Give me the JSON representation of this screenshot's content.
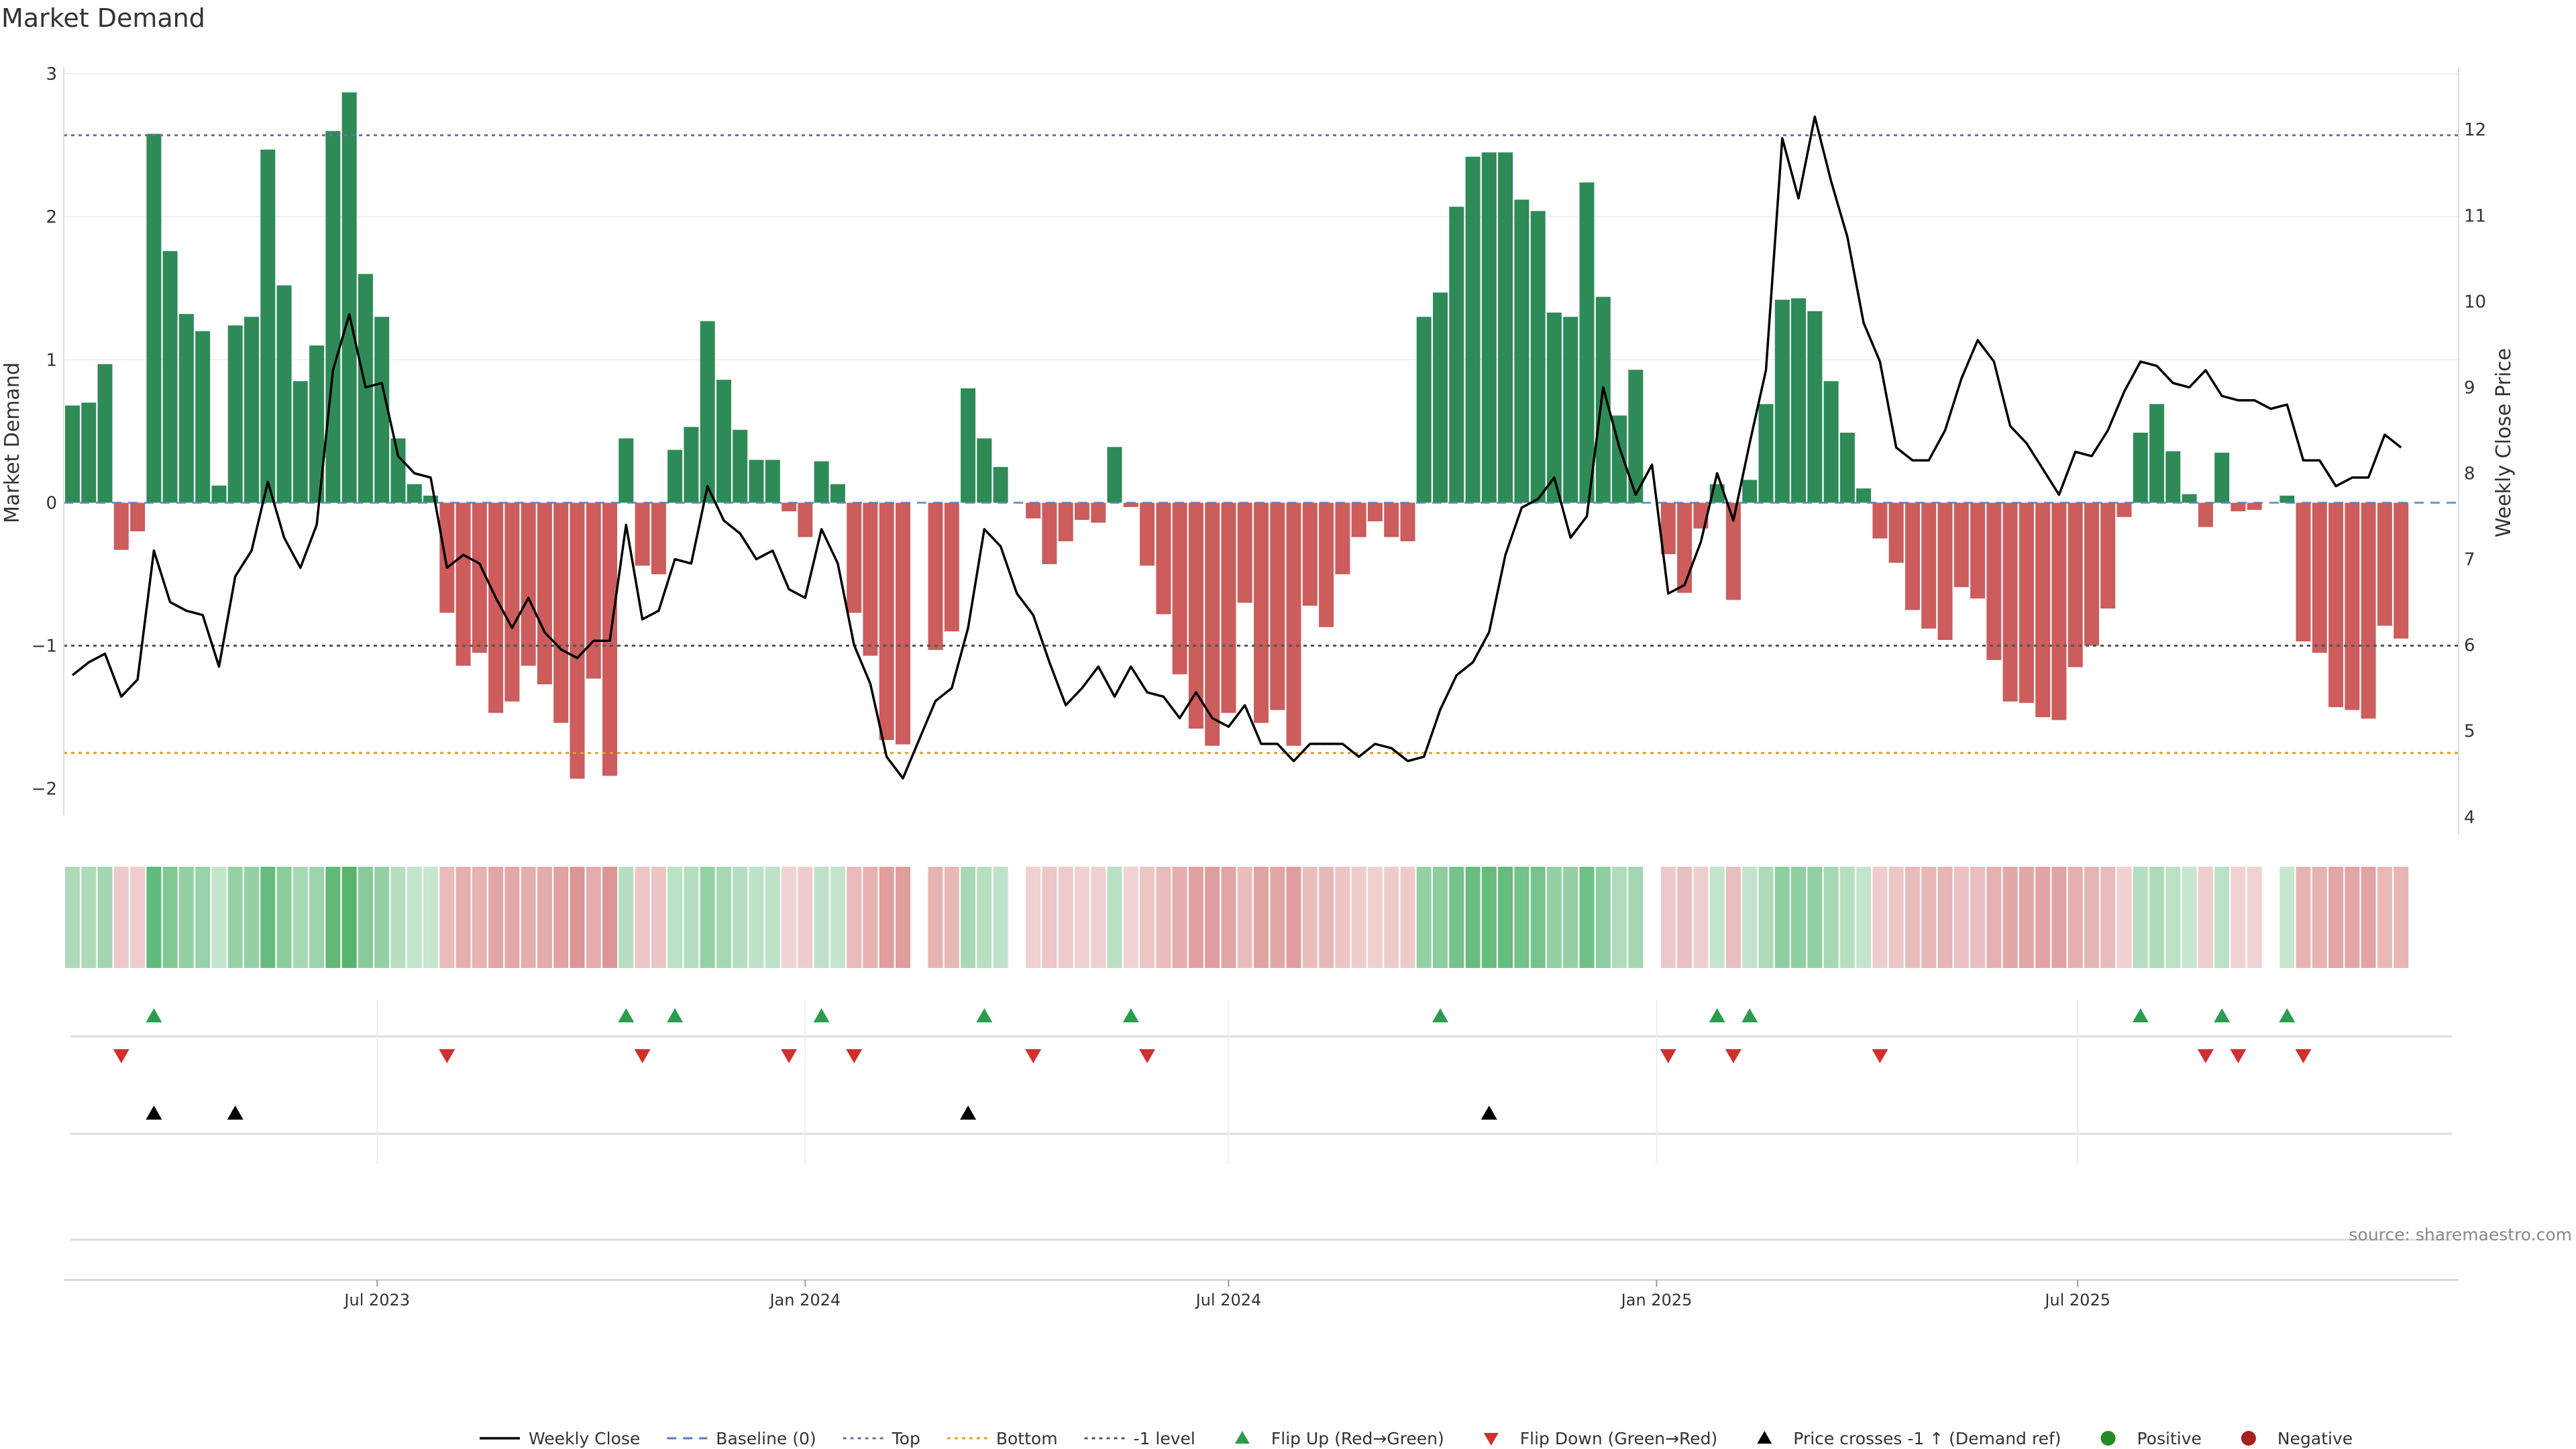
{
  "chart_data": {
    "type": "bar",
    "title": "Market Demand",
    "ylabel": "Market Demand",
    "y2label": "Weekly Close Price",
    "ylim": [
      -2.1,
      3.0
    ],
    "y2lim": [
      3.85,
      12.65
    ],
    "yticks": [
      -2,
      -1,
      0,
      1,
      2,
      3
    ],
    "yticklabels": [
      "−2",
      "−1",
      "0",
      "1",
      "2",
      "3"
    ],
    "y2ticks": [
      4,
      5,
      6,
      7,
      8,
      9,
      10,
      11,
      12
    ],
    "y2ticklabels": [
      "4",
      "5",
      "6",
      "7",
      "8",
      "9",
      "10",
      "11",
      "12"
    ],
    "x_start": "2023-02-20",
    "x_end": "2025-12-08",
    "x_step_days": 7,
    "xticks": [
      {
        "date": "2023-07-01",
        "label": "Jul 2023"
      },
      {
        "date": "2024-01-01",
        "label": "Jan 2024"
      },
      {
        "date": "2024-07-01",
        "label": "Jul 2024"
      },
      {
        "date": "2025-01-01",
        "label": "Jan 2025"
      },
      {
        "date": "2025-07-01",
        "label": "Jul 2025"
      }
    ],
    "levels": {
      "top": 2.57,
      "minus_one": -1.0,
      "bottom": -1.75,
      "baseline": 0
    },
    "series": [
      {
        "name": "Market Demand",
        "values": [
          0.68,
          0.7,
          0.97,
          -0.33,
          -0.2,
          2.58,
          1.76,
          1.32,
          1.2,
          0.12,
          1.24,
          1.3,
          2.47,
          1.52,
          0.85,
          1.1,
          2.6,
          2.87,
          1.6,
          1.3,
          0.45,
          0.13,
          0.05,
          -0.77,
          -1.14,
          -1.05,
          -1.47,
          -1.39,
          -1.14,
          -1.27,
          -1.54,
          -1.93,
          -1.23,
          -1.91,
          0.45,
          -0.44,
          -0.5,
          0.37,
          0.53,
          1.27,
          0.86,
          0.51,
          0.3,
          0.3,
          -0.06,
          -0.24,
          0.29,
          0.13,
          -0.77,
          -1.07,
          -1.66,
          -1.69,
          0.0,
          -1.03,
          -0.9,
          0.8,
          0.45,
          0.25,
          0.0,
          -0.11,
          -0.43,
          -0.27,
          -0.12,
          -0.14,
          0.39,
          -0.03,
          -0.44,
          -0.78,
          -1.2,
          -1.58,
          -1.7,
          -1.47,
          -0.7,
          -1.54,
          -1.45,
          -1.7,
          -0.72,
          -0.87,
          -0.5,
          -0.24,
          -0.13,
          -0.24,
          -0.27,
          1.3,
          1.47,
          2.07,
          2.42,
          2.45,
          2.45,
          2.12,
          2.04,
          1.33,
          1.3,
          2.24,
          1.44,
          0.61,
          0.93,
          0.0,
          -0.36,
          -0.63,
          -0.18,
          0.13,
          -0.68,
          0.16,
          0.69,
          1.42,
          1.43,
          1.34,
          0.85,
          0.49,
          0.1,
          -0.25,
          -0.42,
          -0.75,
          -0.88,
          -0.96,
          -0.59,
          -0.67,
          -1.1,
          -1.39,
          -1.4,
          -1.5,
          -1.52,
          -1.15,
          -1.0,
          -0.74,
          -0.1,
          0.49,
          0.69,
          0.36,
          0.06,
          -0.17,
          0.35,
          -0.06,
          -0.05,
          0.0,
          0.05,
          -0.97,
          -1.05,
          -1.43,
          -1.45,
          -1.51,
          -0.86,
          -0.95
        ]
      },
      {
        "name": "Weekly Close",
        "values": [
          5.65,
          5.8,
          5.9,
          5.4,
          5.6,
          7.1,
          6.5,
          6.4,
          6.35,
          5.75,
          6.8,
          7.1,
          7.9,
          7.25,
          6.9,
          7.4,
          9.2,
          9.85,
          9.0,
          9.05,
          8.2,
          8.0,
          7.95,
          6.9,
          7.05,
          6.95,
          6.55,
          6.2,
          6.55,
          6.15,
          5.95,
          5.85,
          6.05,
          6.05,
          7.4,
          6.3,
          6.4,
          7.0,
          6.95,
          7.85,
          7.45,
          7.3,
          7.0,
          7.1,
          6.65,
          6.55,
          7.35,
          6.95,
          6.0,
          5.55,
          4.7,
          4.45,
          4.9,
          5.35,
          5.5,
          6.2,
          7.35,
          7.15,
          6.6,
          6.35,
          5.8,
          5.3,
          5.5,
          5.75,
          5.4,
          5.75,
          5.45,
          5.4,
          5.15,
          5.45,
          5.15,
          5.05,
          5.3,
          4.85,
          4.85,
          4.65,
          4.85,
          4.85,
          4.85,
          4.7,
          4.85,
          4.8,
          4.65,
          4.7,
          5.25,
          5.65,
          5.8,
          6.15,
          7.05,
          7.6,
          7.7,
          7.95,
          7.25,
          7.5,
          9.0,
          8.3,
          7.75,
          8.1,
          6.6,
          6.7,
          7.2,
          8.0,
          7.45,
          8.35,
          9.2,
          11.9,
          11.2,
          12.15,
          11.4,
          10.75,
          9.75,
          9.3,
          8.3,
          8.15,
          8.15,
          8.5,
          9.1,
          9.55,
          9.3,
          8.55,
          8.35,
          8.05,
          7.75,
          8.25,
          8.2,
          8.5,
          8.95,
          9.3,
          9.25,
          9.05,
          9.0,
          9.2,
          8.9,
          8.85,
          8.85,
          8.75,
          8.8,
          8.15,
          8.15,
          7.85,
          7.95,
          7.95,
          8.45,
          8.3
        ]
      }
    ],
    "flip_up_idx": [
      5,
      34,
      37,
      46,
      56,
      65,
      84,
      101,
      103,
      127,
      132,
      136
    ],
    "flip_down_idx": [
      3,
      23,
      35,
      44,
      48,
      59,
      66,
      98,
      102,
      111,
      131,
      133,
      137
    ],
    "cross_up_idx": [
      5,
      10,
      55,
      87
    ],
    "legend": [
      "Weekly Close",
      "Baseline (0)",
      "Top",
      "Bottom",
      "-1 level",
      "Flip Up (Red→Green)",
      "Flip Down (Green→Red)",
      "Price crosses -1 ↑ (Demand ref)",
      "Positive",
      "Negative"
    ],
    "legend_placement": "bottom-center",
    "source": "source: sharemaestro.com",
    "colors": {
      "positive": "#2e8b57",
      "negative": "#cd5c5c",
      "line": "#000000",
      "baseline": "#4a7fc0",
      "top": "#7b68a8",
      "bottom": "#e0a030",
      "minus_one": "#555555",
      "flip_up": "#2a9d50",
      "flip_down": "#d03030",
      "positive_dot": "#228b22",
      "negative_dot": "#a52020"
    },
    "grid": false
  }
}
